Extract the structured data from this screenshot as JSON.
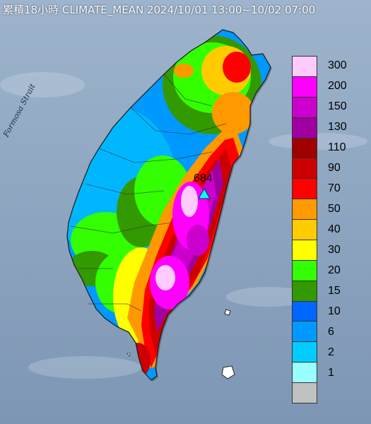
{
  "title": "累積18小時 CLIMATE_MEAN 2024/10/01 13:00~10/02 07:00",
  "strait_label": "Formosa Strait",
  "peak_label": "684",
  "legend": [
    {
      "label": "300",
      "color": "#ffcbff"
    },
    {
      "label": "200",
      "color": "#ff00ff"
    },
    {
      "label": "150",
      "color": "#cc00cc"
    },
    {
      "label": "130",
      "color": "#a000a0"
    },
    {
      "label": "110",
      "color": "#a00000"
    },
    {
      "label": "90",
      "color": "#cc0000"
    },
    {
      "label": "70",
      "color": "#ff0000"
    },
    {
      "label": "50",
      "color": "#ff9900"
    },
    {
      "label": "40",
      "color": "#ffcc00"
    },
    {
      "label": "30",
      "color": "#ffff00"
    },
    {
      "label": "20",
      "color": "#33ff00"
    },
    {
      "label": "15",
      "color": "#339900"
    },
    {
      "label": "10",
      "color": "#0066ff"
    },
    {
      "label": "6",
      "color": "#0099ff"
    },
    {
      "label": "2",
      "color": "#00ccff"
    },
    {
      "label": "1",
      "color": "#99ffff"
    },
    {
      "label": "",
      "color": "#c0c0c0"
    }
  ]
}
